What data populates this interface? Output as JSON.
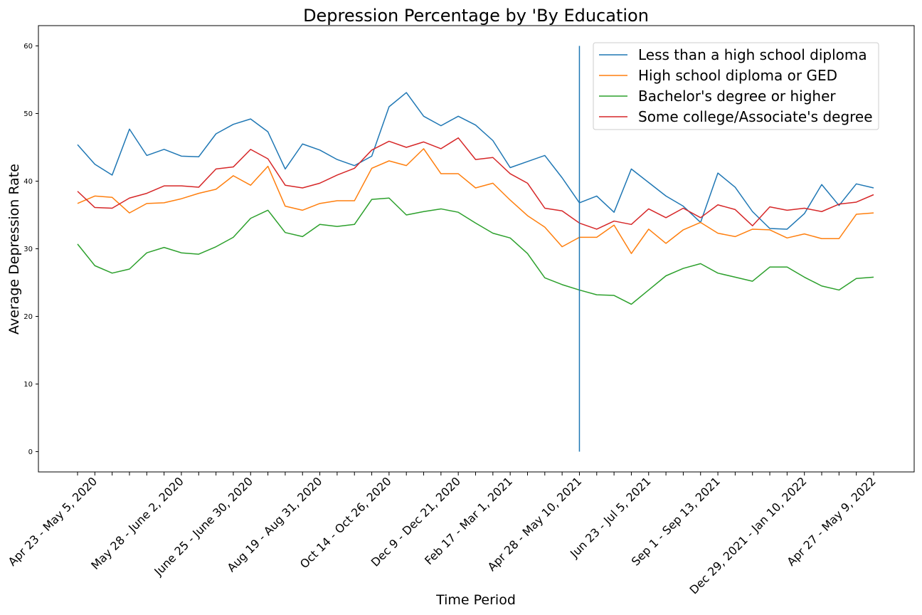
{
  "chart_data": {
    "type": "line",
    "title": "Depression Percentage by 'By Education",
    "xlabel": "Time Period",
    "ylabel": "Average Depression Rate",
    "categories": [
      null,
      "Apr 23 - May 5, 2020",
      null,
      null,
      null,
      null,
      "May 28 - June 2, 2020",
      null,
      null,
      null,
      "June 25 - June 30, 2020",
      null,
      null,
      null,
      "Aug 19 - Aug 31, 2020",
      null,
      null,
      null,
      "Oct 14 - Oct 26, 2020",
      null,
      null,
      null,
      "Dec 9 - Dec 21, 2020",
      null,
      null,
      "Feb 17 - Mar 1, 2021",
      null,
      null,
      null,
      "Apr 28 - May 10, 2021",
      null,
      null,
      null,
      "Jun 23 - Jul 5, 2021",
      null,
      null,
      null,
      "Sep 1 - Sep 13, 2021",
      null,
      null,
      null,
      null,
      "Dec 29, 2021 - Jan 10, 2022",
      null,
      null,
      null,
      "Apr 27 - May 9, 2022"
    ],
    "series": [
      {
        "name": "Less than a high school diploma",
        "color": "#1f77b4",
        "values": [
          45.4,
          42.5,
          40.9,
          47.7,
          43.8,
          44.7,
          43.7,
          43.6,
          47.0,
          48.4,
          49.2,
          47.3,
          41.8,
          45.5,
          44.6,
          43.2,
          42.3,
          43.7,
          51.0,
          53.1,
          49.6,
          48.2,
          49.6,
          48.3,
          46.0,
          42.0,
          42.9,
          43.8,
          40.5,
          36.8,
          37.8,
          35.4,
          41.8,
          39.8,
          37.8,
          36.3,
          33.9,
          41.2,
          39.1,
          35.5,
          33.0,
          32.9,
          35.2,
          39.5,
          36.4,
          39.6,
          39.0
        ]
      },
      {
        "name": "High school diploma or GED",
        "color": "#ff7f0e",
        "values": [
          36.7,
          37.8,
          37.6,
          35.3,
          36.7,
          36.8,
          37.4,
          38.2,
          38.8,
          40.8,
          39.4,
          42.2,
          36.3,
          35.7,
          36.7,
          37.1,
          37.1,
          41.9,
          43.0,
          42.3,
          44.8,
          41.1,
          41.1,
          39.0,
          39.7,
          37.2,
          34.9,
          33.2,
          30.3,
          31.7,
          31.7,
          33.5,
          29.3,
          32.9,
          30.8,
          32.8,
          33.9,
          32.3,
          31.8,
          32.9,
          32.8,
          31.6,
          32.2,
          31.5,
          31.5,
          35.1,
          35.3
        ]
      },
      {
        "name": "Bachelor's degree or higher",
        "color": "#2ca02c",
        "values": [
          30.7,
          27.5,
          26.4,
          27.0,
          29.4,
          30.2,
          29.4,
          29.2,
          30.3,
          31.7,
          34.5,
          35.7,
          32.4,
          31.8,
          33.6,
          33.3,
          33.6,
          37.3,
          37.5,
          35.0,
          35.5,
          35.9,
          35.4,
          33.8,
          32.3,
          31.6,
          29.3,
          25.7,
          24.7,
          23.9,
          23.2,
          23.1,
          21.8,
          23.9,
          26.0,
          27.1,
          27.8,
          26.4,
          25.8,
          25.2,
          27.3,
          27.3,
          25.8,
          24.5,
          23.9,
          25.6,
          25.8
        ]
      },
      {
        "name": "Some college/Associate's degree",
        "color": "#d62728",
        "values": [
          38.5,
          36.1,
          36.0,
          37.5,
          38.2,
          39.3,
          39.3,
          39.1,
          41.8,
          42.1,
          44.7,
          43.3,
          39.4,
          39.0,
          39.7,
          40.9,
          41.9,
          44.6,
          45.9,
          45.0,
          45.8,
          44.8,
          46.4,
          43.2,
          43.5,
          41.1,
          39.7,
          36.0,
          35.6,
          33.8,
          32.9,
          34.1,
          33.6,
          35.9,
          34.6,
          36.0,
          34.6,
          36.5,
          35.8,
          33.4,
          36.2,
          35.7,
          36.0,
          35.5,
          36.6,
          36.9,
          38.0
        ]
      }
    ],
    "vline": {
      "x": "Apr 28 - May 10, 2021",
      "y": [
        0,
        60
      ],
      "color": "#1f77b4"
    },
    "ylim": [
      -3,
      63
    ],
    "yticks": [
      0,
      10,
      20,
      30,
      40,
      50,
      60
    ],
    "legend": "upper right",
    "grid": false
  }
}
